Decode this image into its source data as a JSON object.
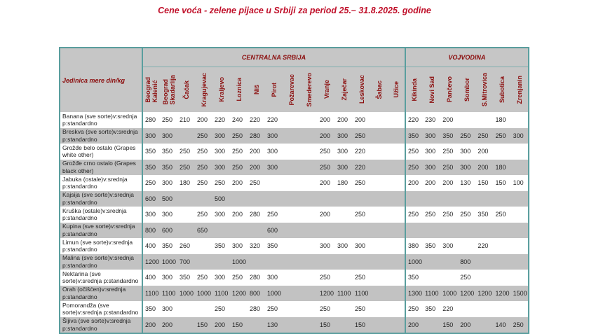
{
  "title": "Cene voća - zelene pijace u Srbiji za period 25.– 31.8.2025. godine",
  "unit_label": "Jedinica mere din/kg",
  "regions": [
    {
      "name": "CENTRALNA SRBIJA",
      "cities": [
        "Beograd\nKalenić",
        "Beograd\nSkadarlija",
        "Čačak",
        "Kragujevac",
        "Kraljevo",
        "Loznica",
        "Niš",
        "Pirot",
        "Požarevac",
        "Smederevo",
        "Vranje",
        "Zaječar",
        "Leskovac",
        "Šabac",
        "Užice"
      ]
    },
    {
      "name": "VOJVODINA",
      "cities": [
        "Kikinda",
        "Novi Sad",
        "Pančevo",
        "Sombor",
        "S.Mitrovica",
        "Subotica",
        "Zrenjanin"
      ]
    }
  ],
  "rows": [
    {
      "product": "Banana (sve sorte)v:srednja p:standardno",
      "prices": [
        "280",
        "250",
        "210",
        "200",
        "220",
        "240",
        "220",
        "220",
        "",
        "",
        "200",
        "200",
        "200",
        "",
        "",
        "220",
        "230",
        "200",
        "",
        "",
        "180",
        ""
      ]
    },
    {
      "product": "Breskva (sve sorte)v:srednja p:standardno",
      "prices": [
        "300",
        "300",
        "",
        "250",
        "300",
        "250",
        "280",
        "300",
        "",
        "",
        "200",
        "300",
        "250",
        "",
        "",
        "350",
        "300",
        "350",
        "250",
        "250",
        "250",
        "300"
      ]
    },
    {
      "product": "Grožđe belo ostalo (Grapes white other)",
      "prices": [
        "350",
        "350",
        "250",
        "250",
        "300",
        "250",
        "200",
        "300",
        "",
        "",
        "250",
        "300",
        "220",
        "",
        "",
        "250",
        "300",
        "250",
        "300",
        "200",
        "",
        ""
      ]
    },
    {
      "product": "Grožđe crno ostalo (Grapes black other)",
      "prices": [
        "350",
        "350",
        "250",
        "250",
        "300",
        "250",
        "200",
        "300",
        "",
        "",
        "250",
        "300",
        "220",
        "",
        "",
        "250",
        "300",
        "250",
        "300",
        "200",
        "180",
        ""
      ]
    },
    {
      "product": "Jabuka (ostale)v:srednja p:standardno",
      "prices": [
        "250",
        "300",
        "180",
        "250",
        "250",
        "200",
        "250",
        "",
        "",
        "",
        "200",
        "180",
        "250",
        "",
        "",
        "200",
        "200",
        "200",
        "130",
        "150",
        "150",
        "100"
      ]
    },
    {
      "product": "Kajsija (sve sorte)v:srednja p:standardno",
      "prices": [
        "600",
        "500",
        "",
        "",
        "500",
        "",
        "",
        "",
        "",
        "",
        "",
        "",
        "",
        "",
        "",
        "",
        "",
        "",
        "",
        "",
        "",
        ""
      ]
    },
    {
      "product": "Kruška (ostale)v:srednja p:standardno",
      "prices": [
        "300",
        "300",
        "",
        "250",
        "300",
        "200",
        "280",
        "250",
        "",
        "",
        "200",
        "",
        "250",
        "",
        "",
        "250",
        "250",
        "250",
        "250",
        "350",
        "250",
        ""
      ]
    },
    {
      "product": "Kupina (sve sorte)v:srednja p:standardno",
      "prices": [
        "800",
        "600",
        "",
        "650",
        "",
        "",
        "",
        "600",
        "",
        "",
        "",
        "",
        "",
        "",
        "",
        "",
        "",
        "",
        "",
        "",
        "",
        ""
      ]
    },
    {
      "product": "Limun (sve sorte)v:srednja p:standardno",
      "prices": [
        "400",
        "350",
        "260",
        "",
        "350",
        "300",
        "320",
        "350",
        "",
        "",
        "300",
        "300",
        "300",
        "",
        "",
        "380",
        "350",
        "300",
        "",
        "220",
        "",
        ""
      ]
    },
    {
      "product": "Malina (sve sorte)v:srednja p:standardno",
      "prices": [
        "1200",
        "1000",
        "700",
        "",
        "",
        "1000",
        "",
        "",
        "",
        "",
        "",
        "",
        "",
        "",
        "",
        "1000",
        "",
        "",
        "800",
        "",
        "",
        ""
      ]
    },
    {
      "product": "Nektarina (sve sorte)v:srednja p:standardno",
      "prices": [
        "400",
        "300",
        "350",
        "250",
        "300",
        "250",
        "280",
        "300",
        "",
        "",
        "250",
        "",
        "250",
        "",
        "",
        "350",
        "",
        "",
        "250",
        "",
        "",
        ""
      ]
    },
    {
      "product": "Orah (očišćen)v:srednja p:standardno",
      "prices": [
        "1100",
        "1100",
        "1000",
        "1000",
        "1100",
        "1200",
        "800",
        "1000",
        "",
        "",
        "1200",
        "1100",
        "1100",
        "",
        "",
        "1300",
        "1100",
        "1000",
        "1200",
        "1200",
        "1200",
        "1500"
      ]
    },
    {
      "product": "Pomorandža (sve sorte)v:srednja p:standardno",
      "prices": [
        "350",
        "300",
        "",
        "",
        "250",
        "",
        "280",
        "250",
        "",
        "",
        "250",
        "",
        "250",
        "",
        "",
        "250",
        "350",
        "220",
        "",
        "",
        "",
        ""
      ]
    },
    {
      "product": "Šljiva (sve sorte)v:srednja p:standardno",
      "prices": [
        "200",
        "200",
        "",
        "150",
        "200",
        "150",
        "",
        "130",
        "",
        "",
        "150",
        "",
        "150",
        "",
        "",
        "200",
        "",
        "150",
        "200",
        "",
        "140",
        "250"
      ]
    }
  ]
}
